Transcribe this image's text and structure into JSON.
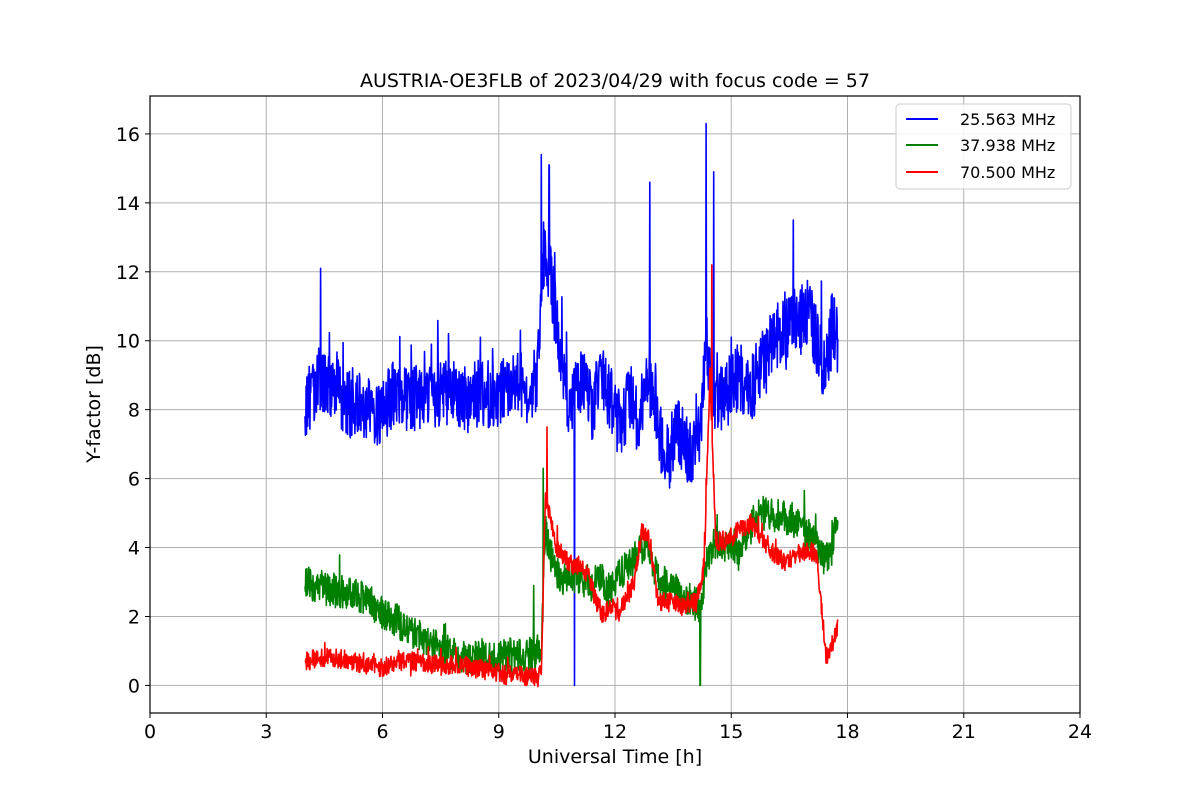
{
  "chart_data": {
    "type": "line",
    "title": "AUSTRIA-OE3FLB of 2023/04/29 with focus code = 57",
    "xlabel": "Universal Time [h]",
    "ylabel": "Y-factor [dB]",
    "xlim": [
      0,
      24
    ],
    "ylim": [
      -0.8,
      17.1
    ],
    "xticks": [
      "0",
      "3",
      "6",
      "9",
      "12",
      "15",
      "18",
      "21",
      "24"
    ],
    "yticks": [
      "0",
      "2",
      "4",
      "6",
      "8",
      "10",
      "12",
      "14",
      "16"
    ],
    "grid": true,
    "legend_position": "top-right",
    "series": [
      {
        "name": "25.563 MHz",
        "color": "#0000ff",
        "noise": 1.0,
        "points": [
          [
            4.0,
            8.2
          ],
          [
            4.2,
            8.4
          ],
          [
            4.4,
            8.9
          ],
          [
            4.6,
            8.6
          ],
          [
            4.8,
            8.9
          ],
          [
            5.0,
            8.2
          ],
          [
            5.3,
            8.1
          ],
          [
            5.6,
            8.0
          ],
          [
            5.9,
            7.7
          ],
          [
            6.0,
            8.0
          ],
          [
            6.3,
            8.5
          ],
          [
            6.6,
            8.3
          ],
          [
            7.0,
            8.4
          ],
          [
            7.4,
            8.5
          ],
          [
            7.8,
            8.4
          ],
          [
            8.2,
            8.3
          ],
          [
            8.6,
            8.5
          ],
          [
            9.0,
            8.4
          ],
          [
            9.4,
            8.7
          ],
          [
            9.8,
            8.6
          ],
          [
            10.0,
            9.0
          ],
          [
            10.15,
            12.5
          ],
          [
            10.3,
            12.0
          ],
          [
            10.5,
            10.5
          ],
          [
            10.7,
            8.5
          ],
          [
            10.9,
            8.0
          ],
          [
            11.0,
            8.5
          ],
          [
            11.2,
            9.0
          ],
          [
            11.4,
            8.0
          ],
          [
            11.6,
            9.0
          ],
          [
            11.8,
            8.5
          ],
          [
            12.0,
            8.0
          ],
          [
            12.2,
            7.5
          ],
          [
            12.4,
            8.5
          ],
          [
            12.6,
            7.5
          ],
          [
            12.8,
            9.0
          ],
          [
            13.0,
            8.5
          ],
          [
            13.2,
            7.0
          ],
          [
            13.4,
            6.5
          ],
          [
            13.6,
            7.5
          ],
          [
            13.8,
            7.0
          ],
          [
            14.0,
            6.5
          ],
          [
            14.2,
            7.5
          ],
          [
            14.35,
            10.0
          ],
          [
            14.5,
            8.5
          ],
          [
            14.7,
            8.2
          ],
          [
            14.9,
            8.5
          ],
          [
            15.2,
            9.0
          ],
          [
            15.5,
            8.5
          ],
          [
            15.8,
            9.5
          ],
          [
            16.1,
            10.0
          ],
          [
            16.4,
            10.5
          ],
          [
            16.7,
            10.5
          ],
          [
            17.0,
            10.8
          ],
          [
            17.2,
            10.0
          ],
          [
            17.4,
            9.0
          ],
          [
            17.6,
            10.5
          ],
          [
            17.75,
            10.0
          ]
        ]
      },
      {
        "name": "37.938 MHz",
        "color": "#008000",
        "noise": 0.5,
        "points": [
          [
            4.0,
            3.0
          ],
          [
            4.3,
            2.9
          ],
          [
            4.6,
            2.8
          ],
          [
            5.0,
            2.7
          ],
          [
            5.4,
            2.6
          ],
          [
            5.8,
            2.3
          ],
          [
            6.2,
            2.0
          ],
          [
            6.6,
            1.7
          ],
          [
            7.0,
            1.4
          ],
          [
            7.4,
            1.1
          ],
          [
            7.8,
            0.9
          ],
          [
            8.2,
            0.8
          ],
          [
            8.6,
            0.9
          ],
          [
            9.0,
            0.8
          ],
          [
            9.4,
            0.9
          ],
          [
            9.8,
            0.9
          ],
          [
            10.1,
            1.0
          ],
          [
            10.2,
            4.5
          ],
          [
            10.4,
            3.5
          ],
          [
            10.6,
            3.2
          ],
          [
            10.8,
            3.0
          ],
          [
            11.0,
            3.2
          ],
          [
            11.2,
            3.0
          ],
          [
            11.4,
            2.9
          ],
          [
            11.6,
            3.2
          ],
          [
            11.8,
            2.7
          ],
          [
            12.0,
            3.0
          ],
          [
            12.2,
            3.3
          ],
          [
            12.4,
            3.6
          ],
          [
            12.6,
            3.8
          ],
          [
            12.8,
            4.0
          ],
          [
            13.0,
            3.3
          ],
          [
            13.2,
            3.0
          ],
          [
            13.4,
            2.9
          ],
          [
            13.6,
            2.8
          ],
          [
            13.8,
            2.6
          ],
          [
            14.0,
            2.4
          ],
          [
            14.2,
            2.3
          ],
          [
            14.4,
            3.8
          ],
          [
            14.6,
            4.2
          ],
          [
            14.8,
            4.0
          ],
          [
            15.0,
            4.2
          ],
          [
            15.2,
            3.8
          ],
          [
            15.4,
            4.3
          ],
          [
            15.6,
            4.8
          ],
          [
            15.8,
            5.0
          ],
          [
            16.0,
            5.0
          ],
          [
            16.3,
            4.9
          ],
          [
            16.6,
            4.8
          ],
          [
            16.9,
            4.4
          ],
          [
            17.2,
            4.2
          ],
          [
            17.4,
            3.6
          ],
          [
            17.6,
            4.0
          ],
          [
            17.75,
            5.0
          ]
        ]
      },
      {
        "name": "70.500 MHz",
        "color": "#ff0000",
        "noise": 0.28,
        "points": [
          [
            4.0,
            0.7
          ],
          [
            4.4,
            0.8
          ],
          [
            4.8,
            0.8
          ],
          [
            5.2,
            0.7
          ],
          [
            5.6,
            0.6
          ],
          [
            6.0,
            0.5
          ],
          [
            6.4,
            0.7
          ],
          [
            6.8,
            0.7
          ],
          [
            7.2,
            0.6
          ],
          [
            7.6,
            0.6
          ],
          [
            8.0,
            0.6
          ],
          [
            8.4,
            0.5
          ],
          [
            8.8,
            0.4
          ],
          [
            9.2,
            0.3
          ],
          [
            9.6,
            0.3
          ],
          [
            10.0,
            0.2
          ],
          [
            10.1,
            0.5
          ],
          [
            10.2,
            5.5
          ],
          [
            10.3,
            5.0
          ],
          [
            10.5,
            4.0
          ],
          [
            10.7,
            3.7
          ],
          [
            10.9,
            3.5
          ],
          [
            11.1,
            3.5
          ],
          [
            11.3,
            3.2
          ],
          [
            11.5,
            2.5
          ],
          [
            11.7,
            2.0
          ],
          [
            11.9,
            2.3
          ],
          [
            12.1,
            2.1
          ],
          [
            12.3,
            2.5
          ],
          [
            12.5,
            3.0
          ],
          [
            12.7,
            4.5
          ],
          [
            12.9,
            4.2
          ],
          [
            13.1,
            2.5
          ],
          [
            13.3,
            2.4
          ],
          [
            13.5,
            2.4
          ],
          [
            13.7,
            2.3
          ],
          [
            13.9,
            2.4
          ],
          [
            14.1,
            2.4
          ],
          [
            14.3,
            3.5
          ],
          [
            14.45,
            9.0
          ],
          [
            14.6,
            4.2
          ],
          [
            14.9,
            4.2
          ],
          [
            15.2,
            4.5
          ],
          [
            15.5,
            4.7
          ],
          [
            15.8,
            4.3
          ],
          [
            16.1,
            3.8
          ],
          [
            16.4,
            3.6
          ],
          [
            16.7,
            3.8
          ],
          [
            17.0,
            3.9
          ],
          [
            17.2,
            3.8
          ],
          [
            17.35,
            2.0
          ],
          [
            17.45,
            0.8
          ],
          [
            17.6,
            1.2
          ],
          [
            17.75,
            1.8
          ]
        ]
      }
    ],
    "spikes": [
      {
        "series": 0,
        "x": 4.4,
        "y": 12.1
      },
      {
        "series": 0,
        "x": 10.1,
        "y": 15.4
      },
      {
        "series": 0,
        "x": 10.3,
        "y": 15.1
      },
      {
        "series": 0,
        "x": 10.95,
        "y": 0.0
      },
      {
        "series": 0,
        "x": 12.9,
        "y": 14.6
      },
      {
        "series": 0,
        "x": 14.35,
        "y": 16.3
      },
      {
        "series": 0,
        "x": 14.55,
        "y": 14.9
      },
      {
        "series": 0,
        "x": 16.6,
        "y": 13.5
      },
      {
        "series": 1,
        "x": 9.9,
        "y": 2.9
      },
      {
        "series": 1,
        "x": 10.15,
        "y": 6.3
      },
      {
        "series": 1,
        "x": 14.2,
        "y": 0.0
      },
      {
        "series": 2,
        "x": 10.25,
        "y": 7.5
      },
      {
        "series": 2,
        "x": 14.5,
        "y": 12.2
      }
    ]
  }
}
